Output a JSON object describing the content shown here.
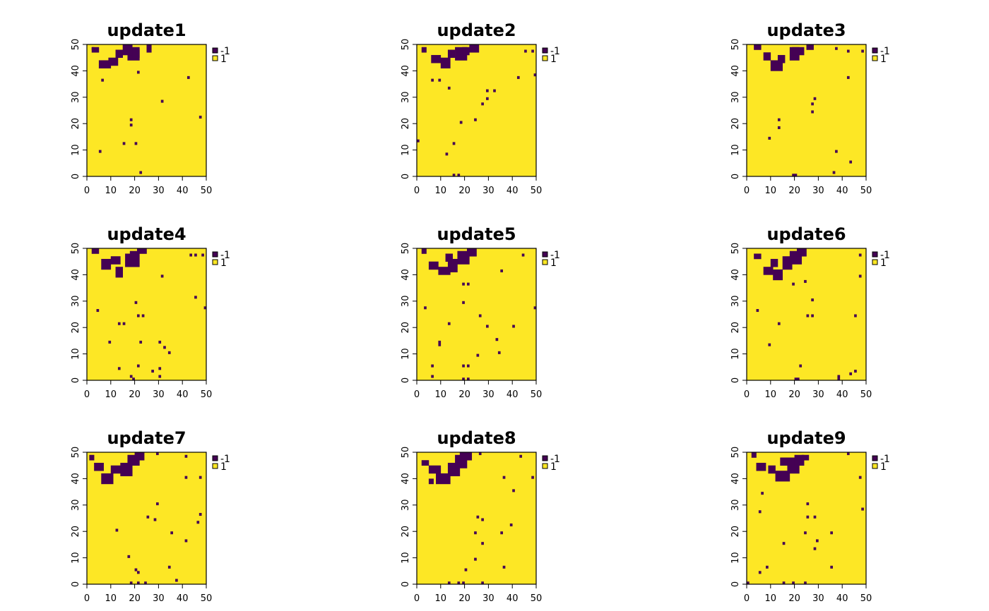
{
  "chart_data": {
    "type": "heatmap",
    "grid": false,
    "legend_position": "right",
    "xlim": [
      0,
      50
    ],
    "ylim": [
      0,
      50
    ],
    "xticks": [
      "0",
      "10",
      "20",
      "30",
      "40",
      "50"
    ],
    "yticks": [
      "0",
      "10",
      "20",
      "30",
      "40",
      "50"
    ],
    "legend": [
      {
        "label": "-1",
        "color": "#440154"
      },
      {
        "label": "1",
        "color": "#FDE725"
      }
    ],
    "panels": [
      {
        "title": "update1",
        "blobs": [
          [
            17,
            44,
            5,
            5
          ],
          [
            5,
            41,
            5,
            3
          ],
          [
            12,
            45,
            3,
            3
          ],
          [
            9,
            42,
            4,
            3
          ],
          [
            19,
            45,
            3,
            3
          ],
          [
            2,
            47,
            3,
            2
          ],
          [
            15,
            46,
            4,
            4
          ],
          [
            25,
            47,
            2,
            3
          ]
        ],
        "specks": [
          [
            2,
            48
          ],
          [
            42,
            37
          ],
          [
            47,
            22
          ],
          [
            31,
            28
          ],
          [
            18,
            21
          ],
          [
            18,
            19
          ],
          [
            15,
            12
          ],
          [
            20,
            12
          ],
          [
            5,
            9
          ],
          [
            22,
            1
          ],
          [
            21,
            39
          ],
          [
            6,
            36
          ]
        ]
      },
      {
        "title": "update2",
        "blobs": [
          [
            16,
            44,
            5,
            5
          ],
          [
            10,
            41,
            4,
            4
          ],
          [
            6,
            43,
            4,
            3
          ],
          [
            13,
            45,
            3,
            3
          ],
          [
            19,
            46,
            3,
            3
          ],
          [
            22,
            47,
            4,
            3
          ],
          [
            2,
            47,
            2,
            2
          ]
        ],
        "specks": [
          [
            45,
            47
          ],
          [
            48,
            47
          ],
          [
            42,
            37
          ],
          [
            49,
            38
          ],
          [
            29,
            32
          ],
          [
            32,
            32
          ],
          [
            29,
            29
          ],
          [
            27,
            27
          ],
          [
            24,
            21
          ],
          [
            18,
            20
          ],
          [
            15,
            12
          ],
          [
            0,
            13
          ],
          [
            12,
            8
          ],
          [
            15,
            0
          ],
          [
            17,
            0
          ],
          [
            6,
            36
          ],
          [
            9,
            36
          ],
          [
            13,
            33
          ]
        ]
      },
      {
        "title": "update3",
        "blobs": [
          [
            18,
            44,
            4,
            5
          ],
          [
            10,
            40,
            5,
            4
          ],
          [
            13,
            43,
            3,
            3
          ],
          [
            7,
            44,
            3,
            3
          ],
          [
            19,
            46,
            5,
            3
          ],
          [
            3,
            48,
            3,
            2
          ],
          [
            25,
            48,
            3,
            2
          ]
        ],
        "specks": [
          [
            37,
            48
          ],
          [
            42,
            47
          ],
          [
            48,
            47
          ],
          [
            42,
            37
          ],
          [
            28,
            29
          ],
          [
            27,
            27
          ],
          [
            27,
            24
          ],
          [
            13,
            21
          ],
          [
            13,
            18
          ],
          [
            9,
            14
          ],
          [
            37,
            9
          ],
          [
            43,
            5
          ],
          [
            36,
            1
          ],
          [
            19,
            0
          ],
          [
            20,
            0
          ]
        ]
      },
      {
        "title": "update4",
        "blobs": [
          [
            16,
            43,
            6,
            5
          ],
          [
            12,
            39,
            3,
            4
          ],
          [
            6,
            42,
            4,
            4
          ],
          [
            10,
            44,
            4,
            3
          ],
          [
            18,
            46,
            3,
            3
          ],
          [
            2,
            48,
            3,
            2
          ],
          [
            21,
            48,
            4,
            2
          ]
        ],
        "specks": [
          [
            43,
            47
          ],
          [
            45,
            47
          ],
          [
            48,
            47
          ],
          [
            31,
            39
          ],
          [
            45,
            31
          ],
          [
            49,
            27
          ],
          [
            4,
            26
          ],
          [
            20,
            29
          ],
          [
            21,
            24
          ],
          [
            23,
            24
          ],
          [
            13,
            21
          ],
          [
            15,
            21
          ],
          [
            9,
            14
          ],
          [
            22,
            14
          ],
          [
            30,
            14
          ],
          [
            32,
            12
          ],
          [
            34,
            10
          ],
          [
            13,
            4
          ],
          [
            21,
            5
          ],
          [
            27,
            3
          ],
          [
            30,
            4
          ],
          [
            18,
            1
          ],
          [
            19,
            0
          ],
          [
            30,
            1
          ]
        ]
      },
      {
        "title": "update5",
        "blobs": [
          [
            13,
            41,
            4,
            5
          ],
          [
            9,
            40,
            5,
            3
          ],
          [
            5,
            42,
            4,
            3
          ],
          [
            12,
            45,
            3,
            3
          ],
          [
            17,
            44,
            5,
            5
          ],
          [
            21,
            47,
            4,
            3
          ],
          [
            2,
            48,
            2,
            2
          ]
        ],
        "specks": [
          [
            44,
            47
          ],
          [
            35,
            41
          ],
          [
            19,
            36
          ],
          [
            21,
            36
          ],
          [
            3,
            27
          ],
          [
            19,
            29
          ],
          [
            49,
            27
          ],
          [
            26,
            24
          ],
          [
            13,
            21
          ],
          [
            29,
            20
          ],
          [
            40,
            20
          ],
          [
            9,
            14
          ],
          [
            9,
            13
          ],
          [
            33,
            15
          ],
          [
            34,
            10
          ],
          [
            25,
            9
          ],
          [
            6,
            5
          ],
          [
            19,
            5
          ],
          [
            21,
            5
          ],
          [
            6,
            1
          ],
          [
            19,
            0
          ],
          [
            21,
            0
          ]
        ]
      },
      {
        "title": "update6",
        "blobs": [
          [
            15,
            42,
            4,
            5
          ],
          [
            11,
            38,
            4,
            4
          ],
          [
            7,
            40,
            4,
            3
          ],
          [
            10,
            43,
            3,
            3
          ],
          [
            18,
            44,
            5,
            5
          ],
          [
            3,
            46,
            3,
            2
          ],
          [
            21,
            47,
            4,
            3
          ]
        ],
        "specks": [
          [
            47,
            47
          ],
          [
            47,
            39
          ],
          [
            24,
            37
          ],
          [
            19,
            36
          ],
          [
            4,
            26
          ],
          [
            27,
            30
          ],
          [
            25,
            24
          ],
          [
            27,
            24
          ],
          [
            13,
            21
          ],
          [
            9,
            13
          ],
          [
            45,
            24
          ],
          [
            22,
            5
          ],
          [
            45,
            3
          ],
          [
            43,
            2
          ],
          [
            20,
            0
          ],
          [
            21,
            0
          ],
          [
            38,
            1
          ],
          [
            38,
            0
          ]
        ]
      },
      {
        "title": "update7",
        "blobs": [
          [
            14,
            41,
            5,
            5
          ],
          [
            6,
            38,
            5,
            4
          ],
          [
            10,
            42,
            4,
            3
          ],
          [
            3,
            43,
            4,
            3
          ],
          [
            17,
            45,
            5,
            4
          ],
          [
            20,
            47,
            4,
            3
          ],
          [
            1,
            47,
            2,
            2
          ]
        ],
        "specks": [
          [
            41,
            48
          ],
          [
            29,
            49
          ],
          [
            41,
            40
          ],
          [
            47,
            40
          ],
          [
            29,
            30
          ],
          [
            25,
            25
          ],
          [
            28,
            24
          ],
          [
            47,
            26
          ],
          [
            46,
            23
          ],
          [
            12,
            20
          ],
          [
            35,
            19
          ],
          [
            41,
            16
          ],
          [
            17,
            10
          ],
          [
            20,
            5
          ],
          [
            21,
            4
          ],
          [
            34,
            6
          ],
          [
            18,
            0
          ],
          [
            21,
            0
          ],
          [
            24,
            0
          ],
          [
            37,
            1
          ]
        ]
      },
      {
        "title": "update8",
        "blobs": [
          [
            13,
            41,
            5,
            5
          ],
          [
            8,
            38,
            6,
            4
          ],
          [
            5,
            42,
            5,
            3
          ],
          [
            16,
            44,
            5,
            5
          ],
          [
            18,
            47,
            5,
            3
          ],
          [
            2,
            45,
            3,
            2
          ],
          [
            5,
            38,
            2,
            2
          ]
        ],
        "specks": [
          [
            26,
            49
          ],
          [
            43,
            48
          ],
          [
            36,
            40
          ],
          [
            40,
            35
          ],
          [
            48,
            40
          ],
          [
            25,
            25
          ],
          [
            27,
            24
          ],
          [
            39,
            22
          ],
          [
            24,
            19
          ],
          [
            35,
            19
          ],
          [
            27,
            15
          ],
          [
            24,
            9
          ],
          [
            20,
            5
          ],
          [
            36,
            6
          ],
          [
            13,
            0
          ],
          [
            17,
            0
          ],
          [
            19,
            0
          ],
          [
            27,
            0
          ]
        ]
      },
      {
        "title": "update9",
        "blobs": [
          [
            12,
            39,
            6,
            4
          ],
          [
            17,
            42,
            5,
            6
          ],
          [
            4,
            43,
            4,
            3
          ],
          [
            9,
            42,
            3,
            3
          ],
          [
            20,
            45,
            4,
            4
          ],
          [
            14,
            45,
            3,
            3
          ],
          [
            23,
            47,
            3,
            2
          ],
          [
            2,
            48,
            2,
            2
          ]
        ],
        "specks": [
          [
            42,
            49
          ],
          [
            47,
            40
          ],
          [
            6,
            34
          ],
          [
            25,
            30
          ],
          [
            25,
            25
          ],
          [
            28,
            25
          ],
          [
            48,
            28
          ],
          [
            5,
            27
          ],
          [
            24,
            19
          ],
          [
            35,
            19
          ],
          [
            29,
            16
          ],
          [
            28,
            13
          ],
          [
            15,
            15
          ],
          [
            8,
            6
          ],
          [
            5,
            4
          ],
          [
            35,
            6
          ],
          [
            0,
            0
          ],
          [
            15,
            0
          ],
          [
            19,
            0
          ],
          [
            24,
            0
          ]
        ]
      }
    ]
  }
}
